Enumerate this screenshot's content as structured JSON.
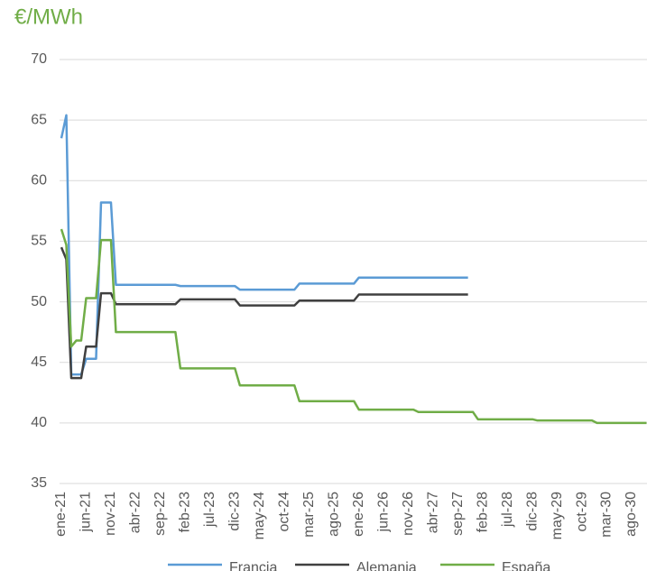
{
  "chart_data": {
    "type": "line",
    "title": "€/MWh",
    "categories": [
      "ene-21",
      null,
      null,
      null,
      null,
      "jun-21",
      null,
      null,
      null,
      null,
      "nov-21",
      null,
      null,
      null,
      null,
      "abr-22",
      null,
      null,
      null,
      null,
      "sep-22",
      null,
      null,
      null,
      null,
      "feb-23",
      null,
      null,
      null,
      null,
      "jul-23",
      null,
      null,
      null,
      null,
      "dic-23",
      null,
      null,
      null,
      null,
      "may-24",
      null,
      null,
      null,
      null,
      "oct-24",
      null,
      null,
      null,
      null,
      "mar-25",
      null,
      null,
      null,
      null,
      "ago-25",
      null,
      null,
      null,
      null,
      "ene-26",
      null,
      null,
      null,
      null,
      "jun-26",
      null,
      null,
      null,
      null,
      "nov-26",
      null,
      null,
      null,
      null,
      "abr-27",
      null,
      null,
      null,
      null,
      "sep-27",
      null,
      null,
      null,
      null,
      "feb-28",
      null,
      null,
      null,
      null,
      "jul-28",
      null,
      null,
      null,
      null,
      "dic-28",
      null,
      null,
      null,
      null,
      "may-29",
      null,
      null,
      null,
      null,
      "oct-29",
      null,
      null,
      null,
      null,
      "mar-30",
      null,
      null,
      null,
      null,
      "ago-30",
      null,
      null,
      null
    ],
    "series": [
      {
        "name": "Francia",
        "color": "#5b9bd5",
        "values": [
          63.5,
          65.4,
          44.0,
          44.0,
          44.0,
          45.3,
          45.3,
          45.3,
          58.2,
          58.2,
          58.2,
          51.4,
          51.4,
          51.4,
          51.4,
          51.4,
          51.4,
          51.4,
          51.4,
          51.4,
          51.4,
          51.4,
          51.4,
          51.4,
          51.3,
          51.3,
          51.3,
          51.3,
          51.3,
          51.3,
          51.3,
          51.3,
          51.3,
          51.3,
          51.3,
          51.3,
          51.0,
          51.0,
          51.0,
          51.0,
          51.0,
          51.0,
          51.0,
          51.0,
          51.0,
          51.0,
          51.0,
          51.0,
          51.5,
          51.5,
          51.5,
          51.5,
          51.5,
          51.5,
          51.5,
          51.5,
          51.5,
          51.5,
          51.5,
          51.5,
          52.0,
          52.0,
          52.0,
          52.0,
          52.0,
          52.0,
          52.0,
          52.0,
          52.0,
          52.0,
          52.0,
          52.0,
          52.0,
          52.0,
          52.0,
          52.0,
          52.0,
          52.0,
          52.0,
          52.0,
          52.0,
          52.0,
          52.0,
          null,
          null,
          null,
          null,
          null,
          null,
          null,
          null,
          null,
          null,
          null,
          null,
          null,
          null,
          null,
          null,
          null,
          null,
          null,
          null,
          null,
          null,
          null,
          null,
          null,
          null,
          null,
          null,
          null,
          null,
          null,
          null,
          null,
          null,
          null,
          null
        ]
      },
      {
        "name": "Alemania",
        "color": "#404040",
        "values": [
          54.5,
          53.5,
          43.7,
          43.7,
          43.7,
          46.3,
          46.3,
          46.3,
          50.7,
          50.7,
          50.7,
          49.8,
          49.8,
          49.8,
          49.8,
          49.8,
          49.8,
          49.8,
          49.8,
          49.8,
          49.8,
          49.8,
          49.8,
          49.8,
          50.2,
          50.2,
          50.2,
          50.2,
          50.2,
          50.2,
          50.2,
          50.2,
          50.2,
          50.2,
          50.2,
          50.2,
          49.7,
          49.7,
          49.7,
          49.7,
          49.7,
          49.7,
          49.7,
          49.7,
          49.7,
          49.7,
          49.7,
          49.7,
          50.1,
          50.1,
          50.1,
          50.1,
          50.1,
          50.1,
          50.1,
          50.1,
          50.1,
          50.1,
          50.1,
          50.1,
          50.6,
          50.6,
          50.6,
          50.6,
          50.6,
          50.6,
          50.6,
          50.6,
          50.6,
          50.6,
          50.6,
          50.6,
          50.6,
          50.6,
          50.6,
          50.6,
          50.6,
          50.6,
          50.6,
          50.6,
          50.6,
          50.6,
          50.6,
          null,
          null,
          null,
          null,
          null,
          null,
          null,
          null,
          null,
          null,
          null,
          null,
          null,
          null,
          null,
          null,
          null,
          null,
          null,
          null,
          null,
          null,
          null,
          null,
          null,
          null,
          null,
          null,
          null,
          null,
          null,
          null,
          null,
          null,
          null,
          null
        ]
      },
      {
        "name": "España",
        "color": "#70ad47",
        "values": [
          56.0,
          54.7,
          46.3,
          46.8,
          46.8,
          50.3,
          50.3,
          50.3,
          55.1,
          55.1,
          55.1,
          47.5,
          47.5,
          47.5,
          47.5,
          47.5,
          47.5,
          47.5,
          47.5,
          47.5,
          47.5,
          47.5,
          47.5,
          47.5,
          44.5,
          44.5,
          44.5,
          44.5,
          44.5,
          44.5,
          44.5,
          44.5,
          44.5,
          44.5,
          44.5,
          44.5,
          43.1,
          43.1,
          43.1,
          43.1,
          43.1,
          43.1,
          43.1,
          43.1,
          43.1,
          43.1,
          43.1,
          43.1,
          41.8,
          41.8,
          41.8,
          41.8,
          41.8,
          41.8,
          41.8,
          41.8,
          41.8,
          41.8,
          41.8,
          41.8,
          41.1,
          41.1,
          41.1,
          41.1,
          41.1,
          41.1,
          41.1,
          41.1,
          41.1,
          41.1,
          41.1,
          41.1,
          40.9,
          40.9,
          40.9,
          40.9,
          40.9,
          40.9,
          40.9,
          40.9,
          40.9,
          40.9,
          40.9,
          40.9,
          40.3,
          40.3,
          40.3,
          40.3,
          40.3,
          40.3,
          40.3,
          40.3,
          40.3,
          40.3,
          40.3,
          40.3,
          40.2,
          40.2,
          40.2,
          40.2,
          40.2,
          40.2,
          40.2,
          40.2,
          40.2,
          40.2,
          40.2,
          40.2,
          40.0,
          40.0,
          40.0,
          40.0,
          40.0,
          40.0,
          40.0,
          40.0,
          40.0,
          40.0,
          40.0
        ]
      }
    ],
    "ylim": [
      35,
      70
    ],
    "yticks": [
      35,
      40,
      45,
      50,
      55,
      60,
      65,
      70
    ],
    "grid": true,
    "legend": "bottom"
  }
}
